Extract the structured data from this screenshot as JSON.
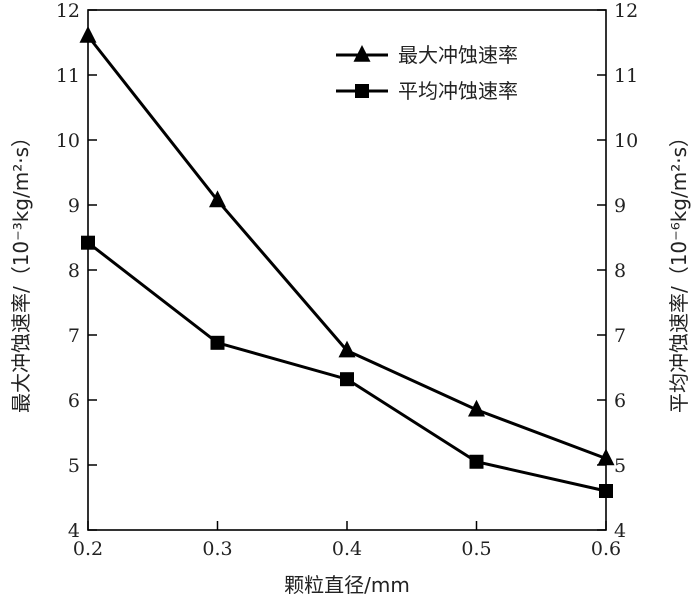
{
  "chart_data": {
    "type": "line",
    "x": [
      0.2,
      0.3,
      0.4,
      0.5,
      0.6
    ],
    "series": [
      {
        "name": "最大冲蚀速率",
        "values": [
          11.6,
          9.07,
          6.76,
          5.85,
          5.1
        ],
        "marker": "triangle",
        "axis": "left"
      },
      {
        "name": "平均冲蚀速率",
        "values": [
          8.42,
          6.88,
          6.32,
          5.05,
          4.6
        ],
        "marker": "square",
        "axis": "right"
      }
    ],
    "xlabel": "颗粒直径/mm",
    "ylabel": "最大冲蚀速率/（10⁻³kg/m²·s）",
    "ylabel_right": "平均冲蚀速率/（10⁻⁶kg/m²·s）",
    "xlim": [
      0.2,
      0.6
    ],
    "ylim": [
      4,
      12
    ],
    "ylim_right": [
      4,
      12
    ],
    "x_ticks": [
      "0.2",
      "0.3",
      "0.4",
      "0.5",
      "0.6"
    ],
    "y_ticks": [
      "4",
      "5",
      "6",
      "7",
      "8",
      "9",
      "10",
      "11",
      "12"
    ],
    "y_ticks_right": [
      "4",
      "5",
      "6",
      "7",
      "8",
      "9",
      "10",
      "11",
      "12"
    ],
    "grid": false,
    "legend_position": "top-right",
    "line_color": "#000000"
  }
}
